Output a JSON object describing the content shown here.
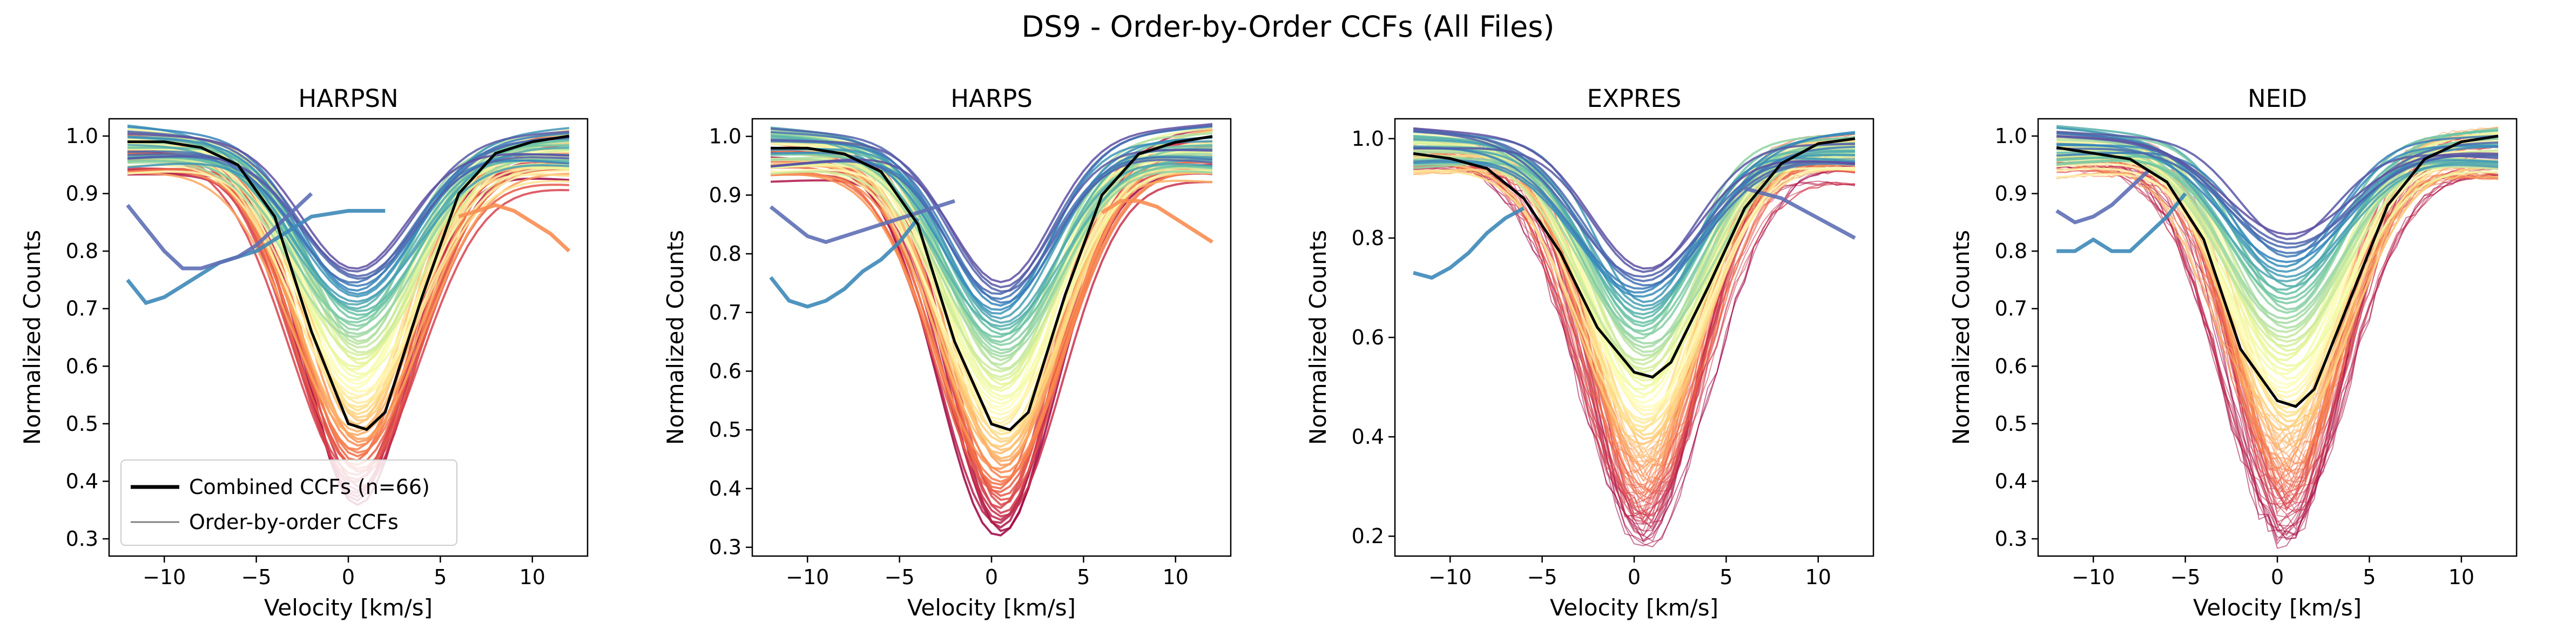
{
  "figure": {
    "suptitle": "DS9 - Order-by-Order CCFs (All Files)"
  },
  "legend": {
    "combined_label": "Combined CCFs (n=66)",
    "order_label": "Order-by-order CCFs",
    "combined_color": "#000000",
    "order_color": "#808080",
    "placement": "lower-left of first panel"
  },
  "colormap": "Spectral",
  "chart_data": [
    {
      "type": "line",
      "title": "HARPSN",
      "xlabel": "Velocity [km/s]",
      "ylabel": "Normalized Counts",
      "xlim": [
        -13,
        13
      ],
      "ylim": [
        0.27,
        1.03
      ],
      "xticks": [
        -10,
        -5,
        0,
        5,
        10
      ],
      "yticks": [
        0.3,
        0.4,
        0.5,
        0.6,
        0.7,
        0.8,
        0.9,
        1.0
      ],
      "grid": false,
      "combined_ccf": {
        "name": "Combined CCFs (n=66)",
        "x": [
          -12,
          -10,
          -8,
          -6,
          -4,
          -2,
          0,
          1,
          2,
          4,
          6,
          8,
          10,
          12
        ],
        "y": [
          0.99,
          0.99,
          0.98,
          0.95,
          0.86,
          0.66,
          0.5,
          0.49,
          0.52,
          0.72,
          0.9,
          0.97,
          0.99,
          1.0
        ]
      },
      "order_ccfs_summary": {
        "line_count": 66,
        "min_depth": 0.36,
        "max_depth": 0.77,
        "distorted_orders": [
          {
            "x": [
              -12,
              -11,
              -10,
              -9,
              -8,
              -7,
              -6,
              -5,
              -4,
              -2,
              0,
              2
            ],
            "y": [
              0.75,
              0.71,
              0.72,
              0.74,
              0.76,
              0.78,
              0.79,
              0.8,
              0.82,
              0.86,
              0.87,
              0.87
            ]
          },
          {
            "x": [
              -12,
              -10,
              -9,
              -8,
              -7,
              -6,
              -5,
              -4,
              -2
            ],
            "y": [
              0.88,
              0.8,
              0.77,
              0.77,
              0.78,
              0.79,
              0.81,
              0.84,
              0.9
            ]
          },
          {
            "x": [
              6,
              7,
              8,
              9,
              10,
              11,
              12
            ],
            "y": [
              0.86,
              0.87,
              0.88,
              0.87,
              0.85,
              0.83,
              0.8
            ]
          }
        ]
      }
    },
    {
      "type": "line",
      "title": "HARPS",
      "xlabel": "Velocity [km/s]",
      "ylabel": "Normalized Counts",
      "xlim": [
        -13,
        13
      ],
      "ylim": [
        0.285,
        1.03
      ],
      "xticks": [
        -10,
        -5,
        0,
        5,
        10
      ],
      "yticks": [
        0.3,
        0.4,
        0.5,
        0.6,
        0.7,
        0.8,
        0.9,
        1.0
      ],
      "grid": false,
      "combined_ccf": {
        "name": "Combined CCFs (n=66)",
        "x": [
          -12,
          -10,
          -8,
          -6,
          -4,
          -2,
          0,
          1,
          2,
          4,
          6,
          8,
          10,
          12
        ],
        "y": [
          0.98,
          0.98,
          0.97,
          0.94,
          0.85,
          0.65,
          0.51,
          0.5,
          0.53,
          0.73,
          0.9,
          0.97,
          0.99,
          1.0
        ]
      },
      "order_ccfs_summary": {
        "line_count": 66,
        "min_depth": 0.32,
        "max_depth": 0.75,
        "distorted_orders": [
          {
            "x": [
              -12,
              -11,
              -10,
              -9,
              -8,
              -7,
              -6,
              -5,
              -4
            ],
            "y": [
              0.76,
              0.72,
              0.71,
              0.72,
              0.74,
              0.77,
              0.79,
              0.82,
              0.86
            ]
          },
          {
            "x": [
              -12,
              -10,
              -9,
              -8,
              -7,
              -6,
              -5,
              -4,
              -2
            ],
            "y": [
              0.88,
              0.83,
              0.82,
              0.83,
              0.84,
              0.85,
              0.86,
              0.87,
              0.89
            ]
          },
          {
            "x": [
              6,
              7,
              8,
              9,
              10,
              11,
              12
            ],
            "y": [
              0.87,
              0.89,
              0.89,
              0.88,
              0.86,
              0.84,
              0.82
            ]
          }
        ]
      }
    },
    {
      "type": "line",
      "title": "EXPRES",
      "xlabel": "Velocity [km/s]",
      "ylabel": "Normalized Counts",
      "xlim": [
        -13,
        13
      ],
      "ylim": [
        0.16,
        1.04
      ],
      "xticks": [
        -10,
        -5,
        0,
        5,
        10
      ],
      "yticks": [
        0.2,
        0.4,
        0.6,
        0.8,
        1.0
      ],
      "grid": false,
      "combined_ccf": {
        "name": "Combined CCFs (n=66)",
        "x": [
          -12,
          -10,
          -8,
          -6,
          -4,
          -2,
          0,
          1,
          2,
          4,
          6,
          8,
          10,
          12
        ],
        "y": [
          0.97,
          0.96,
          0.94,
          0.88,
          0.77,
          0.62,
          0.53,
          0.52,
          0.55,
          0.7,
          0.86,
          0.95,
          0.99,
          1.0
        ]
      },
      "order_ccfs_summary": {
        "line_count": 66,
        "min_depth": 0.19,
        "max_depth": 0.74,
        "distorted_orders": [
          {
            "x": [
              -12,
              -11,
              -10,
              -9,
              -8,
              -7,
              -6
            ],
            "y": [
              0.73,
              0.72,
              0.74,
              0.77,
              0.81,
              0.84,
              0.86
            ]
          },
          {
            "x": [
              6,
              7,
              8,
              9,
              10,
              11,
              12
            ],
            "y": [
              0.9,
              0.89,
              0.88,
              0.86,
              0.84,
              0.82,
              0.8
            ]
          }
        ]
      }
    },
    {
      "type": "line",
      "title": "NEID",
      "xlabel": "Velocity [km/s]",
      "ylabel": "Normalized Counts",
      "xlim": [
        -13,
        13
      ],
      "ylim": [
        0.27,
        1.03
      ],
      "xticks": [
        -10,
        -5,
        0,
        5,
        10
      ],
      "yticks": [
        0.3,
        0.4,
        0.5,
        0.6,
        0.7,
        0.8,
        0.9,
        1.0
      ],
      "grid": false,
      "combined_ccf": {
        "name": "Combined CCFs (n=66)",
        "x": [
          -12,
          -10,
          -8,
          -6,
          -4,
          -2,
          0,
          1,
          2,
          4,
          6,
          8,
          10,
          12
        ],
        "y": [
          0.98,
          0.97,
          0.96,
          0.92,
          0.82,
          0.63,
          0.54,
          0.53,
          0.56,
          0.72,
          0.88,
          0.96,
          0.99,
          1.0
        ]
      },
      "order_ccfs_summary": {
        "line_count": 66,
        "min_depth": 0.3,
        "max_depth": 0.83,
        "distorted_orders": [
          {
            "x": [
              -12,
              -11,
              -10,
              -9,
              -8,
              -7,
              -6,
              -5
            ],
            "y": [
              0.8,
              0.8,
              0.82,
              0.8,
              0.8,
              0.83,
              0.86,
              0.9
            ]
          },
          {
            "x": [
              -12,
              -11,
              -10,
              -9,
              -8,
              -7
            ],
            "y": [
              0.87,
              0.85,
              0.86,
              0.88,
              0.91,
              0.94
            ]
          }
        ]
      }
    }
  ]
}
